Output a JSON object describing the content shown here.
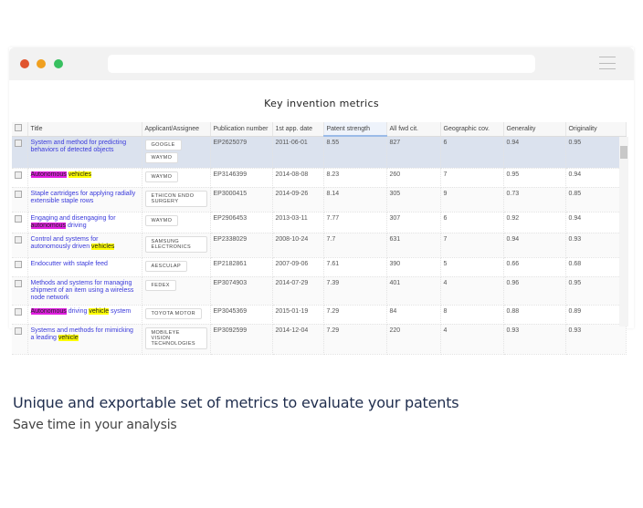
{
  "window": {
    "dots": [
      "#e0542e",
      "#f0a020",
      "#38c060"
    ]
  },
  "title": "Key invention metrics",
  "columns": [
    "Title",
    "Applicant/Assignee",
    "Publication number",
    "1st app. date",
    "Patent strength",
    "All fwd cit.",
    "Geographic cov.",
    "Generality",
    "Originality"
  ],
  "rows": [
    {
      "title": [
        {
          "t": "System and method for predicting behaviors of detected objects"
        }
      ],
      "assignees": [
        "GOOGLE",
        "WAYMO"
      ],
      "pub": "EP2625079",
      "date": "2011-06-01",
      "strength": "8.55",
      "fwd": "827",
      "geo": "6",
      "gen": "0.94",
      "orig": "0.95",
      "selected": true
    },
    {
      "title": [
        {
          "t": "Autonomous",
          "h": "m"
        },
        {
          "t": " "
        },
        {
          "t": "vehicles",
          "h": "y"
        }
      ],
      "assignees": [
        "WAYMO"
      ],
      "pub": "EP3146399",
      "date": "2014-08-08",
      "strength": "8.23",
      "fwd": "260",
      "geo": "7",
      "gen": "0.95",
      "orig": "0.94"
    },
    {
      "title": [
        {
          "t": "Staple cartridges for applying radially extensible staple rows"
        }
      ],
      "assignees": [
        "ETHICON ENDO SURGERY"
      ],
      "pub": "EP3000415",
      "date": "2014-09-26",
      "strength": "8.14",
      "fwd": "305",
      "geo": "9",
      "gen": "0.73",
      "orig": "0.85"
    },
    {
      "title": [
        {
          "t": "Engaging and disengaging for "
        },
        {
          "t": "autonomous",
          "h": "m"
        },
        {
          "t": " driving"
        }
      ],
      "assignees": [
        "WAYMO"
      ],
      "pub": "EP2906453",
      "date": "2013-03-11",
      "strength": "7.77",
      "fwd": "307",
      "geo": "6",
      "gen": "0.92",
      "orig": "0.94"
    },
    {
      "title": [
        {
          "t": "Control and systems for autonomously driven "
        },
        {
          "t": "vehicles",
          "h": "y"
        }
      ],
      "assignees": [
        "SAMSUNG ELECTRONICS"
      ],
      "pub": "EP2338029",
      "date": "2008-10-24",
      "strength": "7.7",
      "fwd": "631",
      "geo": "7",
      "gen": "0.94",
      "orig": "0.93"
    },
    {
      "title": [
        {
          "t": "Endocutter with staple feed"
        }
      ],
      "assignees": [
        "AESCULAP"
      ],
      "pub": "EP2182861",
      "date": "2007-09-06",
      "strength": "7.61",
      "fwd": "390",
      "geo": "5",
      "gen": "0.66",
      "orig": "0.68"
    },
    {
      "title": [
        {
          "t": "Methods and systems for managing shipment of an item using a wireless node network"
        }
      ],
      "assignees": [
        "FEDEX"
      ],
      "pub": "EP3074903",
      "date": "2014-07-29",
      "strength": "7.39",
      "fwd": "401",
      "geo": "4",
      "gen": "0.96",
      "orig": "0.95"
    },
    {
      "title": [
        {
          "t": "Autonomous",
          "h": "m"
        },
        {
          "t": " driving "
        },
        {
          "t": "vehicle",
          "h": "y"
        },
        {
          "t": " system"
        }
      ],
      "assignees": [
        "TOYOTA MOTOR"
      ],
      "pub": "EP3045369",
      "date": "2015-01-19",
      "strength": "7.29",
      "fwd": "84",
      "geo": "8",
      "gen": "0.88",
      "orig": "0.89"
    },
    {
      "title": [
        {
          "t": "Systems and methods for mimicking a leading "
        },
        {
          "t": "vehicle",
          "h": "y"
        }
      ],
      "assignees": [
        "MOBILEYE VISION TECHNOLOGIES"
      ],
      "pub": "EP3092599",
      "date": "2014-12-04",
      "strength": "7.29",
      "fwd": "220",
      "geo": "4",
      "gen": "0.93",
      "orig": "0.93"
    }
  ],
  "footer": {
    "heading": "Unique and exportable set of metrics to evaluate your patents",
    "subheading": "Save time in your analysis"
  }
}
